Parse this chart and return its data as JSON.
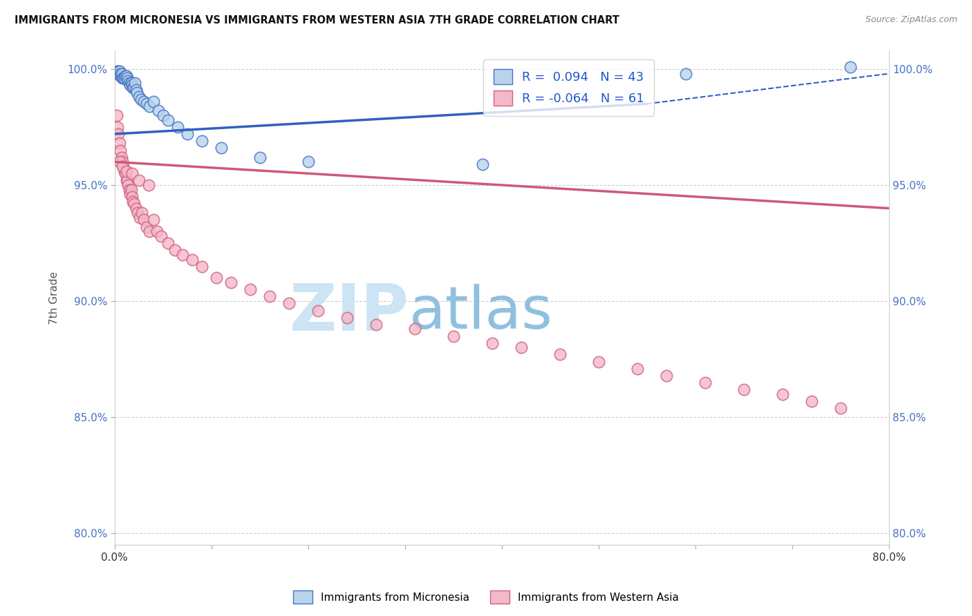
{
  "title": "IMMIGRANTS FROM MICRONESIA VS IMMIGRANTS FROM WESTERN ASIA 7TH GRADE CORRELATION CHART",
  "source": "Source: ZipAtlas.com",
  "ylabel": "7th Grade",
  "xlim": [
    0.0,
    0.8
  ],
  "ylim": [
    0.795,
    1.008
  ],
  "xticks": [
    0.0,
    0.1,
    0.2,
    0.3,
    0.4,
    0.5,
    0.6,
    0.7,
    0.8
  ],
  "xticklabels": [
    "0.0%",
    "",
    "",
    "",
    "",
    "",
    "",
    "",
    "80.0%"
  ],
  "yticks": [
    0.8,
    0.85,
    0.9,
    0.95,
    1.0
  ],
  "yticklabels": [
    "80.0%",
    "85.0%",
    "90.0%",
    "95.0%",
    "100.0%"
  ],
  "r_micronesia": 0.094,
  "n_micronesia": 43,
  "r_western_asia": -0.064,
  "n_western_asia": 61,
  "color_micronesia_fill": "#b8d4ec",
  "color_micronesia_edge": "#4472C4",
  "color_western_asia_fill": "#f4b8c8",
  "color_western_asia_edge": "#d06080",
  "color_micronesia_line": "#3060C0",
  "color_western_asia_line": "#D05878",
  "watermark_zip_color": "#c8dff0",
  "watermark_atlas_color": "#a0c8e8",
  "grid_color": "#cccccc",
  "title_color": "#111111",
  "source_color": "#888888",
  "axis_label_color": "#555555",
  "tick_color_y": "#4472C4",
  "tick_color_x": "#333333",
  "legend_text_color": "#2255CC",
  "mic_x": [
    0.003,
    0.004,
    0.004,
    0.005,
    0.005,
    0.006,
    0.006,
    0.007,
    0.007,
    0.008,
    0.009,
    0.01,
    0.011,
    0.012,
    0.013,
    0.014,
    0.015,
    0.016,
    0.017,
    0.018,
    0.019,
    0.02,
    0.021,
    0.022,
    0.023,
    0.025,
    0.027,
    0.03,
    0.033,
    0.036,
    0.04,
    0.045,
    0.05,
    0.055,
    0.065,
    0.075,
    0.09,
    0.11,
    0.15,
    0.2,
    0.38,
    0.59,
    0.76
  ],
  "mic_y": [
    0.999,
    0.999,
    0.998,
    0.998,
    0.999,
    0.998,
    0.997,
    0.997,
    0.998,
    0.996,
    0.996,
    0.996,
    0.997,
    0.997,
    0.996,
    0.995,
    0.994,
    0.993,
    0.994,
    0.993,
    0.992,
    0.992,
    0.994,
    0.991,
    0.99,
    0.988,
    0.987,
    0.986,
    0.985,
    0.984,
    0.986,
    0.982,
    0.98,
    0.978,
    0.975,
    0.972,
    0.969,
    0.966,
    0.962,
    0.96,
    0.959,
    0.998,
    1.001
  ],
  "wa_x": [
    0.002,
    0.003,
    0.004,
    0.005,
    0.006,
    0.007,
    0.008,
    0.009,
    0.01,
    0.011,
    0.012,
    0.013,
    0.014,
    0.015,
    0.016,
    0.017,
    0.018,
    0.019,
    0.02,
    0.022,
    0.024,
    0.026,
    0.028,
    0.03,
    0.033,
    0.036,
    0.04,
    0.044,
    0.048,
    0.055,
    0.062,
    0.07,
    0.08,
    0.09,
    0.105,
    0.12,
    0.14,
    0.16,
    0.18,
    0.21,
    0.24,
    0.27,
    0.31,
    0.35,
    0.39,
    0.42,
    0.46,
    0.5,
    0.54,
    0.57,
    0.61,
    0.65,
    0.69,
    0.72,
    0.75,
    0.005,
    0.008,
    0.012,
    0.018,
    0.025,
    0.035
  ],
  "wa_y": [
    0.98,
    0.975,
    0.972,
    0.968,
    0.965,
    0.962,
    0.96,
    0.958,
    0.956,
    0.955,
    0.952,
    0.952,
    0.95,
    0.948,
    0.946,
    0.948,
    0.945,
    0.943,
    0.942,
    0.94,
    0.938,
    0.936,
    0.938,
    0.935,
    0.932,
    0.93,
    0.935,
    0.93,
    0.928,
    0.925,
    0.922,
    0.92,
    0.918,
    0.915,
    0.91,
    0.908,
    0.905,
    0.902,
    0.899,
    0.896,
    0.893,
    0.89,
    0.888,
    0.885,
    0.882,
    0.88,
    0.877,
    0.874,
    0.871,
    0.868,
    0.865,
    0.862,
    0.86,
    0.857,
    0.854,
    0.96,
    0.958,
    0.956,
    0.955,
    0.952,
    0.95
  ]
}
